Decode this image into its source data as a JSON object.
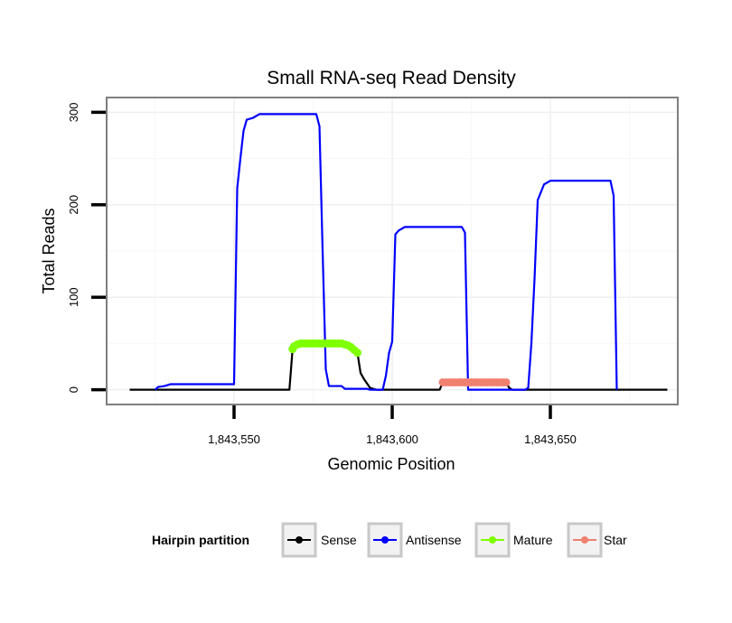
{
  "chart_data": {
    "type": "line",
    "title": "Small RNA-seq Read Density",
    "xlabel": "Genomic Position",
    "ylabel": "Total Reads",
    "xlim": [
      1843510,
      1843690
    ],
    "ylim": [
      -15,
      315
    ],
    "xticks": [
      1843550,
      1843600,
      1843650
    ],
    "xtick_labels": [
      "1,843,550",
      "1,843,600",
      "1,843,650"
    ],
    "yticks": [
      0,
      100,
      200,
      300
    ],
    "ytick_labels": [
      "0",
      "100",
      "200",
      "300"
    ],
    "grid": true,
    "legend": {
      "title": "Hairpin partition",
      "placement": "bottom",
      "entries": [
        "Sense",
        "Antisense",
        "Mature",
        "Star"
      ]
    },
    "series": [
      {
        "name": "Sense",
        "color": "#000000",
        "marker": "none",
        "segments": [
          [
            [
              1843517,
              0
            ],
            [
              1843567.5,
              0
            ],
            [
              1843568.5,
              44
            ]
          ],
          [
            [
              1843589,
              40
            ],
            [
              1843590,
              18
            ],
            [
              1843591,
              12
            ],
            [
              1843593,
              2
            ],
            [
              1843595,
              0
            ],
            [
              1843615,
              0
            ],
            [
              1843616,
              8
            ]
          ],
          [
            [
              1843636,
              8
            ],
            [
              1843637,
              2
            ],
            [
              1843638,
              0
            ],
            [
              1843687,
              0
            ]
          ]
        ]
      },
      {
        "name": "Antisense",
        "color": "#0000ff",
        "marker": "none",
        "segments": [
          [
            [
              1843525,
              0
            ],
            [
              1843526,
              3
            ],
            [
              1843528,
              4
            ],
            [
              1843530,
              6
            ],
            [
              1843548,
              6
            ],
            [
              1843550,
              6
            ],
            [
              1843551,
              218
            ],
            [
              1843552,
              250
            ],
            [
              1843553,
              280
            ],
            [
              1843554,
              292
            ],
            [
              1843556,
              294
            ],
            [
              1843558,
              298
            ],
            [
              1843576,
              298
            ],
            [
              1843577,
              285
            ],
            [
              1843578,
              150
            ],
            [
              1843579,
              22
            ],
            [
              1843580,
              4
            ],
            [
              1843584,
              4
            ],
            [
              1843585,
              1
            ],
            [
              1843592,
              1
            ],
            [
              1843593,
              0
            ],
            [
              1843597,
              0
            ],
            [
              1843598,
              15
            ],
            [
              1843599,
              40
            ],
            [
              1843600,
              52
            ],
            [
              1843601,
              168
            ],
            [
              1843602,
              172
            ],
            [
              1843604,
              176
            ],
            [
              1843622,
              176
            ],
            [
              1843623,
              170
            ],
            [
              1843624,
              0
            ],
            [
              1843642,
              0
            ],
            [
              1843643,
              2
            ],
            [
              1843644,
              50
            ],
            [
              1843645,
              120
            ],
            [
              1843646,
              205
            ],
            [
              1843648,
              222
            ],
            [
              1843650,
              226
            ],
            [
              1843669,
              226
            ],
            [
              1843670,
              210
            ],
            [
              1843671,
              0
            ]
          ]
        ]
      },
      {
        "name": "Mature",
        "color": "#7fff00",
        "marker": "circle",
        "points": [
          [
            1843568.5,
            44
          ],
          [
            1843569,
            47
          ],
          [
            1843570,
            49
          ],
          [
            1843571,
            50
          ],
          [
            1843572,
            50
          ],
          [
            1843573,
            50
          ],
          [
            1843574,
            50
          ],
          [
            1843575,
            50
          ],
          [
            1843576,
            50
          ],
          [
            1843577,
            50
          ],
          [
            1843578,
            50
          ],
          [
            1843579,
            50
          ],
          [
            1843580,
            50
          ],
          [
            1843581,
            50
          ],
          [
            1843582,
            50
          ],
          [
            1843583,
            50
          ],
          [
            1843584,
            50
          ],
          [
            1843585,
            49
          ],
          [
            1843586,
            48
          ],
          [
            1843587,
            46
          ],
          [
            1843588,
            43
          ],
          [
            1843589,
            40
          ]
        ]
      },
      {
        "name": "Star",
        "color": "#f08070",
        "marker": "circle",
        "points": [
          [
            1843616,
            8
          ],
          [
            1843617,
            8
          ],
          [
            1843618,
            8
          ],
          [
            1843619,
            8
          ],
          [
            1843620,
            8
          ],
          [
            1843621,
            8
          ],
          [
            1843622,
            8
          ],
          [
            1843623,
            8
          ],
          [
            1843624,
            8
          ],
          [
            1843625,
            8
          ],
          [
            1843626,
            8
          ],
          [
            1843627,
            8
          ],
          [
            1843628,
            8
          ],
          [
            1843629,
            8
          ],
          [
            1843630,
            8
          ],
          [
            1843631,
            8
          ],
          [
            1843632,
            8
          ],
          [
            1843633,
            8
          ],
          [
            1843634,
            8
          ],
          [
            1843635,
            8
          ],
          [
            1843636,
            8
          ]
        ]
      }
    ]
  }
}
